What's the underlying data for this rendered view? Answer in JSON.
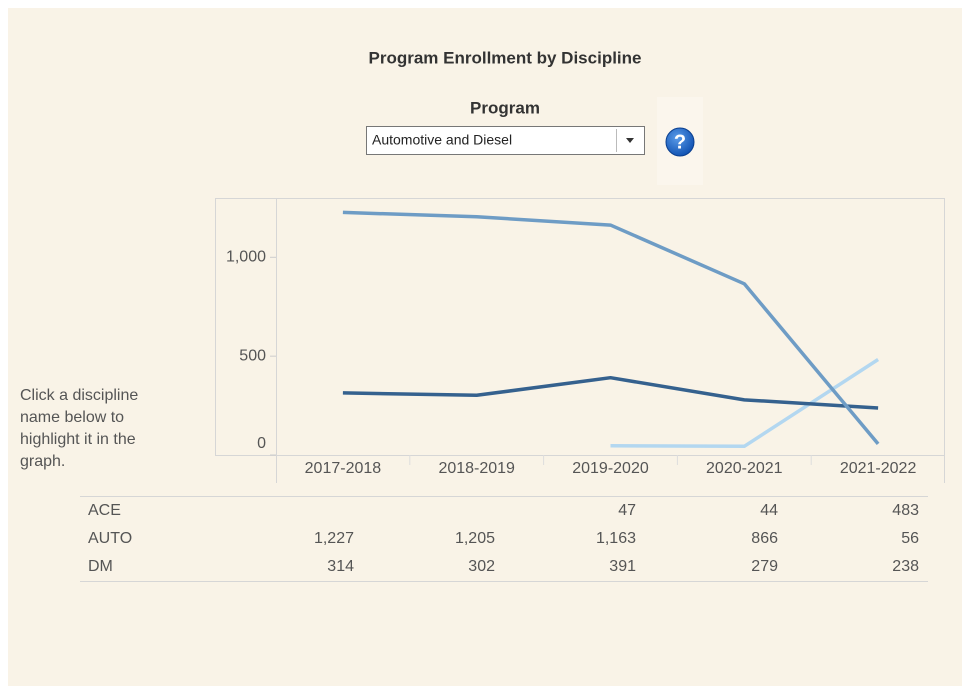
{
  "chart_data": {
    "type": "line",
    "title": "Program Enrollment by Discipline",
    "categories": [
      "2017-2018",
      "2018-2019",
      "2019-2020",
      "2020-2021",
      "2021-2022"
    ],
    "series": [
      {
        "name": "ACE",
        "color": "#b3d7f0",
        "values": [
          null,
          null,
          47,
          44,
          483
        ],
        "value_labels": [
          null,
          null,
          "47",
          "44",
          "483"
        ]
      },
      {
        "name": "AUTO",
        "color": "#6e9cc5",
        "values": [
          1227,
          1205,
          1163,
          866,
          56
        ],
        "value_labels": [
          "1,227",
          "1,205",
          "1,163",
          "866",
          "56"
        ]
      },
      {
        "name": "DM",
        "color": "#35618e",
        "values": [
          314,
          302,
          391,
          279,
          238
        ],
        "value_labels": [
          "314",
          "302",
          "391",
          "279",
          "238"
        ]
      }
    ],
    "ylim": [
      0,
      1300
    ],
    "yticks": [
      0,
      500,
      {
        "value": 1000,
        "label": "1,000"
      }
    ],
    "grid": false
  },
  "program_filter": {
    "label": "Program",
    "selected": "Automotive and Diesel"
  },
  "help_icon": "?",
  "instruction": "Click a discipline name below to highlight it in the graph."
}
